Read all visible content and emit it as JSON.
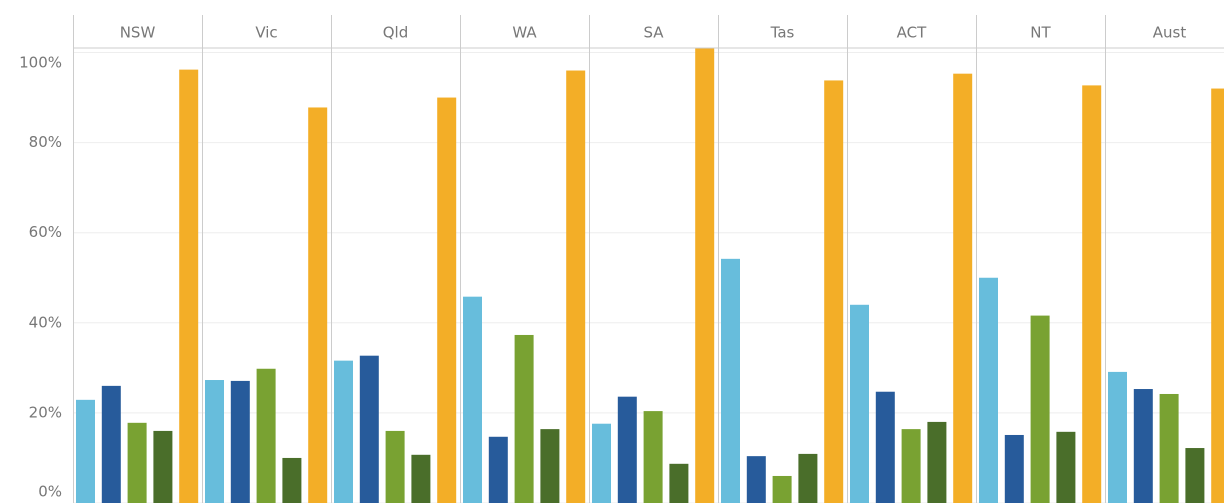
{
  "chart_data": {
    "type": "bar",
    "categories": [
      "NSW",
      "Vic",
      "Qld",
      "WA",
      "SA",
      "Tas",
      "ACT",
      "NT",
      "Aust"
    ],
    "series": [
      {
        "color": "#67bddc",
        "values": [
          22.9,
          27.3,
          31.6,
          45.8,
          17.6,
          54.2,
          44,
          50,
          29.1
        ]
      },
      {
        "color": "#275b9b",
        "values": [
          26,
          27.1,
          32.7,
          14.7,
          23.6,
          10.4,
          24.7,
          15.1,
          25.3
        ]
      },
      {
        "color": "#79a232",
        "values": [
          17.8,
          29.8,
          16,
          37.3,
          20.4,
          6,
          16.4,
          41.6,
          24.2
        ]
      },
      {
        "color": "#4a6e2a",
        "values": [
          16,
          10,
          10.7,
          16.4,
          8.7,
          10.9,
          18,
          15.8,
          12.2
        ]
      },
      {
        "color": "#f3ae27",
        "values": [
          96.2,
          87.8,
          90,
          96,
          100.9,
          93.8,
          95.3,
          92.7,
          92
        ]
      }
    ],
    "ylim": [
      0,
      101
    ],
    "yticks": [
      {
        "value": 0,
        "label": "0%"
      },
      {
        "value": 20,
        "label": "20%"
      },
      {
        "value": 40,
        "label": "40%"
      },
      {
        "value": 60,
        "label": "60%"
      },
      {
        "value": 80,
        "label": "80%"
      },
      {
        "value": 100,
        "label": "100%"
      }
    ],
    "grid": true
  }
}
